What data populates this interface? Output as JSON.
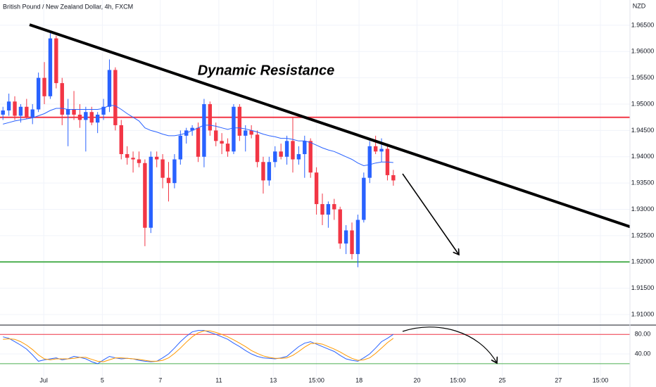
{
  "chart_data": [
    {
      "type": "candlestick",
      "title": "British Pound / New Zealand Dollar, 4h, FXCM",
      "y_label": "NZD",
      "annotation": "Dynamic Resistance",
      "up_color": "#2962ff",
      "down_color": "#f23645",
      "open": [
        1.948,
        1.9488,
        1.9505,
        1.9478,
        1.9495,
        1.9475,
        1.949,
        1.955,
        1.9515,
        1.9625,
        1.954,
        1.948,
        1.949,
        1.948,
        1.947,
        1.9485,
        1.9465,
        1.948,
        1.9495,
        1.9565,
        1.946,
        1.9405,
        1.9398,
        1.9395,
        1.9388,
        1.9265,
        1.94,
        1.9395,
        1.936,
        1.935,
        1.9395,
        1.944,
        1.945,
        1.9455,
        1.94,
        1.95,
        1.945,
        1.943,
        1.9425,
        1.941,
        1.9495,
        1.944,
        1.945,
        1.9442,
        1.939,
        1.9355,
        1.939,
        1.941,
        1.94,
        1.943,
        1.9395,
        1.9405,
        1.943,
        1.937,
        1.931,
        1.929,
        1.931,
        1.93,
        1.9235,
        1.926,
        1.9215,
        1.928,
        1.936,
        1.942,
        1.941,
        1.9415,
        1.9365
      ],
      "high": [
        1.9495,
        1.952,
        1.9515,
        1.95,
        1.951,
        1.95,
        1.956,
        1.958,
        1.9635,
        1.963,
        1.955,
        1.951,
        1.9525,
        1.95,
        1.9495,
        1.9495,
        1.9485,
        1.951,
        1.9585,
        1.957,
        1.947,
        1.942,
        1.941,
        1.941,
        1.9395,
        1.941,
        1.941,
        1.9405,
        1.939,
        1.9405,
        1.945,
        1.9455,
        1.946,
        1.9465,
        1.951,
        1.9505,
        1.9465,
        1.9445,
        1.9435,
        1.95,
        1.95,
        1.946,
        1.946,
        1.945,
        1.94,
        1.94,
        1.942,
        1.9425,
        1.944,
        1.9475,
        1.942,
        1.944,
        1.9435,
        1.938,
        1.933,
        1.9315,
        1.932,
        1.9305,
        1.927,
        1.9275,
        1.929,
        1.937,
        1.943,
        1.944,
        1.9435,
        1.942,
        1.9375
      ],
      "low": [
        1.947,
        1.9478,
        1.947,
        1.9465,
        1.9472,
        1.9462,
        1.9485,
        1.95,
        1.951,
        1.953,
        1.946,
        1.942,
        1.947,
        1.9455,
        1.941,
        1.946,
        1.9445,
        1.947,
        1.9485,
        1.945,
        1.9395,
        1.9385,
        1.937,
        1.938,
        1.923,
        1.9255,
        1.938,
        1.934,
        1.9315,
        1.934,
        1.9385,
        1.9425,
        1.944,
        1.939,
        1.938,
        1.944,
        1.942,
        1.9405,
        1.94,
        1.9405,
        1.943,
        1.941,
        1.9435,
        1.938,
        1.933,
        1.9345,
        1.938,
        1.9395,
        1.9385,
        1.937,
        1.9385,
        1.936,
        1.936,
        1.929,
        1.927,
        1.9265,
        1.928,
        1.9225,
        1.9215,
        1.9205,
        1.919,
        1.9275,
        1.935,
        1.9405,
        1.939,
        1.9355,
        1.9345
      ],
      "close": [
        1.9488,
        1.9505,
        1.9478,
        1.9495,
        1.9475,
        1.949,
        1.955,
        1.9515,
        1.9625,
        1.954,
        1.948,
        1.949,
        1.948,
        1.947,
        1.9485,
        1.9465,
        1.948,
        1.9495,
        1.9565,
        1.946,
        1.9405,
        1.9398,
        1.9395,
        1.9388,
        1.9265,
        1.94,
        1.9395,
        1.936,
        1.935,
        1.9395,
        1.944,
        1.945,
        1.9455,
        1.94,
        1.95,
        1.945,
        1.943,
        1.9425,
        1.941,
        1.9495,
        1.944,
        1.945,
        1.9442,
        1.939,
        1.9355,
        1.939,
        1.941,
        1.94,
        1.943,
        1.9395,
        1.9405,
        1.943,
        1.937,
        1.931,
        1.929,
        1.931,
        1.93,
        1.9235,
        1.926,
        1.9215,
        1.928,
        1.936,
        1.942,
        1.941,
        1.9415,
        1.9365,
        1.9355
      ],
      "ma": {
        "color": "#2962ff",
        "values": [
          1.9462,
          1.9465,
          1.9468,
          1.947,
          1.9472,
          1.9474,
          1.9478,
          1.9482,
          1.9488,
          1.9492,
          1.9492,
          1.949,
          1.949,
          1.949,
          1.949,
          1.949,
          1.949,
          1.9492,
          1.9498,
          1.9497,
          1.949,
          1.9482,
          1.9475,
          1.9468,
          1.9455,
          1.945,
          1.9447,
          1.9443,
          1.944,
          1.944,
          1.9442,
          1.9445,
          1.945,
          1.9455,
          1.946,
          1.946,
          1.9458,
          1.9455,
          1.9452,
          1.9455,
          1.9455,
          1.9453,
          1.945,
          1.9447,
          1.9443,
          1.944,
          1.9438,
          1.9435,
          1.9435,
          1.9433,
          1.943,
          1.943,
          1.9427,
          1.9422,
          1.9417,
          1.9413,
          1.941,
          1.9405,
          1.94,
          1.9395,
          1.9388,
          1.9383,
          1.9385,
          1.9388,
          1.939,
          1.939,
          1.9389
        ]
      },
      "levels": [
        {
          "value": 1.9475,
          "color": "#f23645"
        },
        {
          "value": 1.92,
          "color": "#4caf50"
        }
      ],
      "trendline": {
        "x": [
          4.5,
          106
        ],
        "y": [
          1.9651,
          1.9267
        ],
        "color": "#000000"
      },
      "xlim": [
        -0.5,
        106
      ],
      "xticks": [
        {
          "value": 6.9,
          "label": "Jul"
        },
        {
          "value": 16.8,
          "label": "5"
        },
        {
          "value": 26.6,
          "label": "7"
        },
        {
          "value": 36.5,
          "label": "11"
        },
        {
          "value": 45.7,
          "label": "13"
        },
        {
          "value": 53.0,
          "label": "15:00"
        },
        {
          "value": 60.2,
          "label": "18"
        },
        {
          "value": 70.0,
          "label": "20"
        },
        {
          "value": 76.9,
          "label": "15:00"
        },
        {
          "value": 84.4,
          "label": "25"
        },
        {
          "value": 93.9,
          "label": "27"
        },
        {
          "value": 101.0,
          "label": "15:00"
        }
      ],
      "ylim": [
        1.908,
        1.9698
      ],
      "yticks": [
        {
          "value": 1.91,
          "label": "1.91000"
        },
        {
          "value": 1.915,
          "label": "1.91500"
        },
        {
          "value": 1.92,
          "label": "1.92000"
        },
        {
          "value": 1.925,
          "label": "1.92500"
        },
        {
          "value": 1.93,
          "label": "1.93000"
        },
        {
          "value": 1.935,
          "label": "1.93500"
        },
        {
          "value": 1.94,
          "label": "1.94000"
        },
        {
          "value": 1.945,
          "label": "1.94500"
        },
        {
          "value": 1.95,
          "label": "1.95000"
        },
        {
          "value": 1.955,
          "label": "1.95500"
        },
        {
          "value": 1.96,
          "label": "1.96000"
        },
        {
          "value": 1.965,
          "label": "1.96500"
        }
      ],
      "grid": true
    },
    {
      "type": "line",
      "series": [
        {
          "color": "#2962ff",
          "values": [
            75,
            72,
            65,
            58,
            50,
            38,
            25,
            28,
            30,
            32,
            28,
            30,
            35,
            33,
            30,
            24,
            20,
            28,
            35,
            32,
            30,
            31,
            30,
            27,
            25,
            24,
            25,
            32,
            40,
            52,
            65,
            76,
            85,
            88,
            88,
            84,
            80,
            75,
            70,
            62,
            55,
            47,
            40,
            35,
            32,
            31,
            30,
            32,
            35,
            45,
            55,
            62,
            65,
            60,
            55,
            50,
            45,
            37,
            30,
            27,
            25,
            32,
            40,
            52,
            65,
            72,
            80
          ]
        },
        {
          "color": "#ff9800",
          "values": [
            70,
            71,
            70,
            65,
            58,
            49,
            38,
            30,
            28,
            30,
            30,
            30,
            31,
            33,
            33,
            29,
            25,
            24,
            28,
            32,
            32,
            31,
            30,
            29,
            27,
            25,
            25,
            27,
            32,
            41,
            52,
            64,
            75,
            83,
            87,
            87,
            84,
            80,
            75,
            69,
            62,
            55,
            47,
            41,
            36,
            33,
            31,
            31,
            32,
            37,
            45,
            54,
            61,
            62,
            60,
            55,
            50,
            44,
            37,
            31,
            27,
            28,
            32,
            41,
            52,
            63,
            72
          ]
        }
      ],
      "levels": [
        {
          "value": 80,
          "color": "#f23645"
        },
        {
          "value": 20,
          "color": "#4caf50"
        }
      ],
      "ylim": [
        -6,
        99
      ],
      "yticks": [
        {
          "value": 40,
          "label": "40.00"
        },
        {
          "value": 80,
          "label": "80.00"
        }
      ]
    }
  ]
}
